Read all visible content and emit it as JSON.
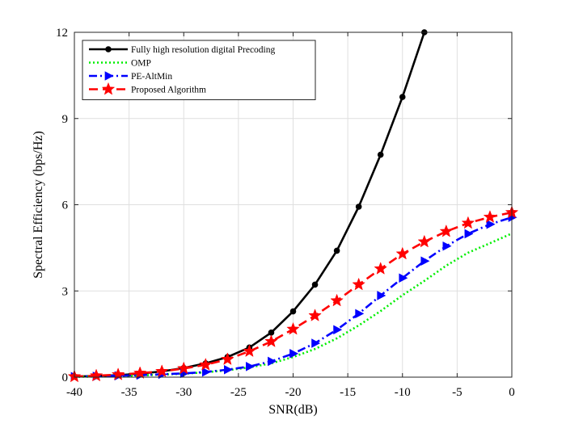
{
  "chart_data": {
    "type": "line",
    "title": "",
    "xlabel": "SNR(dB)",
    "ylabel": "Spectral Efficiency (bps/Hz)",
    "xlim": [
      -40,
      0
    ],
    "ylim": [
      0,
      12
    ],
    "xticks": [
      -40,
      -35,
      -30,
      -25,
      -20,
      -15,
      -10,
      -5,
      0
    ],
    "yticks": [
      0,
      3,
      6,
      9,
      12
    ],
    "xtick_labels": [
      "-40",
      "-35",
      "-30",
      "-25",
      "-20",
      "-15",
      "-10",
      "-5",
      "0"
    ],
    "ytick_labels": [
      "0",
      "3",
      "6",
      "9",
      "12"
    ],
    "grid": true,
    "legend_position": "top-left",
    "series": [
      {
        "name": "Fully high resolution digital Precoding",
        "color": "#000000",
        "marker": "circle",
        "line_style": "solid",
        "x": [
          -40,
          -38,
          -36,
          -34,
          -32,
          -30,
          -28,
          -26,
          -24,
          -22,
          -20,
          -18,
          -16,
          -14,
          -12,
          -10,
          -8
        ],
        "y": [
          0.02,
          0.04,
          0.07,
          0.12,
          0.2,
          0.32,
          0.48,
          0.7,
          1.03,
          1.55,
          2.29,
          3.22,
          4.4,
          5.93,
          7.74,
          9.75,
          12.0
        ]
      },
      {
        "name": "OMP",
        "color": "#00ee00",
        "marker": "none",
        "line_style": "dotted",
        "x": [
          -40,
          -38,
          -36,
          -34,
          -32,
          -30,
          -28,
          -26,
          -24,
          -22,
          -20,
          -18,
          -16,
          -14,
          -12,
          -10,
          -8,
          -6,
          -4,
          -2,
          0
        ],
        "y": [
          0.01,
          0.02,
          0.04,
          0.06,
          0.09,
          0.12,
          0.17,
          0.24,
          0.34,
          0.48,
          0.7,
          0.98,
          1.35,
          1.8,
          2.3,
          2.85,
          3.35,
          3.88,
          4.33,
          4.66,
          5.0
        ]
      },
      {
        "name": "PE-AltMin",
        "color": "#0000ff",
        "marker": "triangle-right",
        "line_style": "dashdot",
        "x": [
          -40,
          -38,
          -36,
          -34,
          -32,
          -30,
          -28,
          -26,
          -24,
          -22,
          -20,
          -18,
          -16,
          -14,
          -12,
          -10,
          -8,
          -6,
          -4,
          -2,
          0
        ],
        "y": [
          0.02,
          0.03,
          0.05,
          0.07,
          0.1,
          0.13,
          0.18,
          0.26,
          0.37,
          0.55,
          0.82,
          1.18,
          1.65,
          2.21,
          2.84,
          3.45,
          4.04,
          4.56,
          4.99,
          5.32,
          5.56
        ]
      },
      {
        "name": "Proposed Algorithm",
        "color": "#ff0000",
        "marker": "star",
        "line_style": "dashed",
        "x": [
          -40,
          -38,
          -36,
          -34,
          -32,
          -30,
          -28,
          -26,
          -24,
          -22,
          -20,
          -18,
          -16,
          -14,
          -12,
          -10,
          -8,
          -6,
          -4,
          -2,
          0
        ],
        "y": [
          0.02,
          0.05,
          0.09,
          0.14,
          0.2,
          0.3,
          0.43,
          0.62,
          0.9,
          1.24,
          1.67,
          2.14,
          2.66,
          3.22,
          3.77,
          4.29,
          4.71,
          5.07,
          5.36,
          5.57,
          5.73
        ]
      }
    ]
  }
}
